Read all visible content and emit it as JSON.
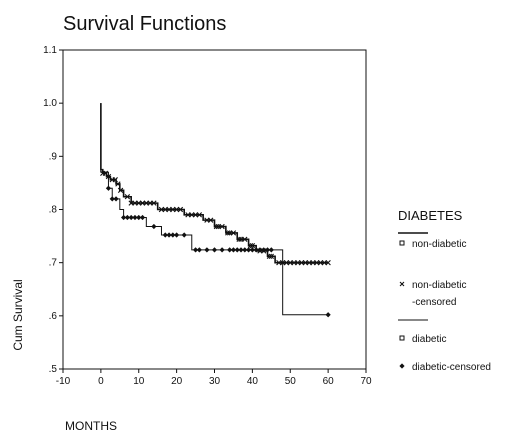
{
  "chart_data": {
    "type": "line",
    "title": "Survival Functions",
    "xlabel": "MONTHS",
    "ylabel": "Cum Survival",
    "xlim": [
      -10,
      70
    ],
    "ylim": [
      0.5,
      1.1
    ],
    "x_ticks": [
      -10,
      0,
      10,
      20,
      30,
      40,
      50,
      60,
      70
    ],
    "y_ticks": [
      0.5,
      0.6,
      0.7,
      0.8,
      0.9,
      1.0,
      1.1
    ],
    "y_tick_labels": [
      ".5",
      ".6",
      ".7",
      ".8",
      ".9",
      "1.0",
      "1.1"
    ],
    "grid": false,
    "legend": {
      "title": "DIABETES",
      "position": "right",
      "entries": [
        {
          "label": "non-diabetic",
          "marker": "open-square",
          "line": "thick"
        },
        {
          "label": "non-diabetic",
          "label_line2": "-censored",
          "marker": "x"
        },
        {
          "label": "diabetic",
          "marker": "open-square",
          "line": "thin"
        },
        {
          "label": "diabetic-censored",
          "marker": "filled-diamond"
        }
      ]
    },
    "series": [
      {
        "name": "non-diabetic",
        "color": "#111111",
        "stroke": "thick",
        "steps": [
          [
            0,
            1.0
          ],
          [
            0,
            0.875
          ],
          [
            0.5,
            0.868
          ],
          [
            1.5,
            0.862
          ],
          [
            2.5,
            0.856
          ],
          [
            4,
            0.848
          ],
          [
            5,
            0.836
          ],
          [
            6,
            0.824
          ],
          [
            8,
            0.812
          ],
          [
            15,
            0.8
          ],
          [
            22,
            0.79
          ],
          [
            27,
            0.78
          ],
          [
            30,
            0.768
          ],
          [
            33,
            0.756
          ],
          [
            36,
            0.744
          ],
          [
            39,
            0.732
          ],
          [
            41,
            0.722
          ],
          [
            44,
            0.712
          ],
          [
            46,
            0.7
          ],
          [
            60,
            0.7
          ]
        ],
        "censored_x": [
          0.5,
          1.2,
          2,
          3,
          3.8,
          4.5,
          5.2,
          7,
          8,
          9,
          10,
          11,
          12,
          13,
          14,
          16,
          17,
          18,
          19,
          20,
          21,
          23,
          24,
          25,
          26,
          28,
          29,
          30.5,
          31,
          32,
          33.5,
          34,
          35,
          36.5,
          37,
          38,
          39.5,
          40,
          42,
          43,
          44.5,
          45,
          47,
          48,
          49,
          50,
          51,
          52,
          53,
          54,
          55,
          56,
          57,
          58,
          59,
          60
        ]
      },
      {
        "name": "diabetic",
        "color": "#111111",
        "stroke": "thin",
        "steps": [
          [
            0,
            1.0
          ],
          [
            0,
            0.87
          ],
          [
            2,
            0.84
          ],
          [
            3,
            0.82
          ],
          [
            5,
            0.8
          ],
          [
            6,
            0.785
          ],
          [
            12,
            0.785
          ],
          [
            12,
            0.768
          ],
          [
            16,
            0.752
          ],
          [
            24,
            0.724
          ],
          [
            48,
            0.724
          ],
          [
            48,
            0.602
          ],
          [
            60,
            0.602
          ]
        ],
        "censored_x": [
          2,
          3,
          4,
          6,
          7,
          8,
          9,
          10,
          11,
          14,
          17,
          18,
          19,
          20,
          22,
          25,
          26,
          28,
          30,
          32,
          34,
          35,
          36,
          37,
          38,
          39,
          40,
          41,
          42,
          43,
          44,
          45,
          60
        ]
      }
    ]
  }
}
